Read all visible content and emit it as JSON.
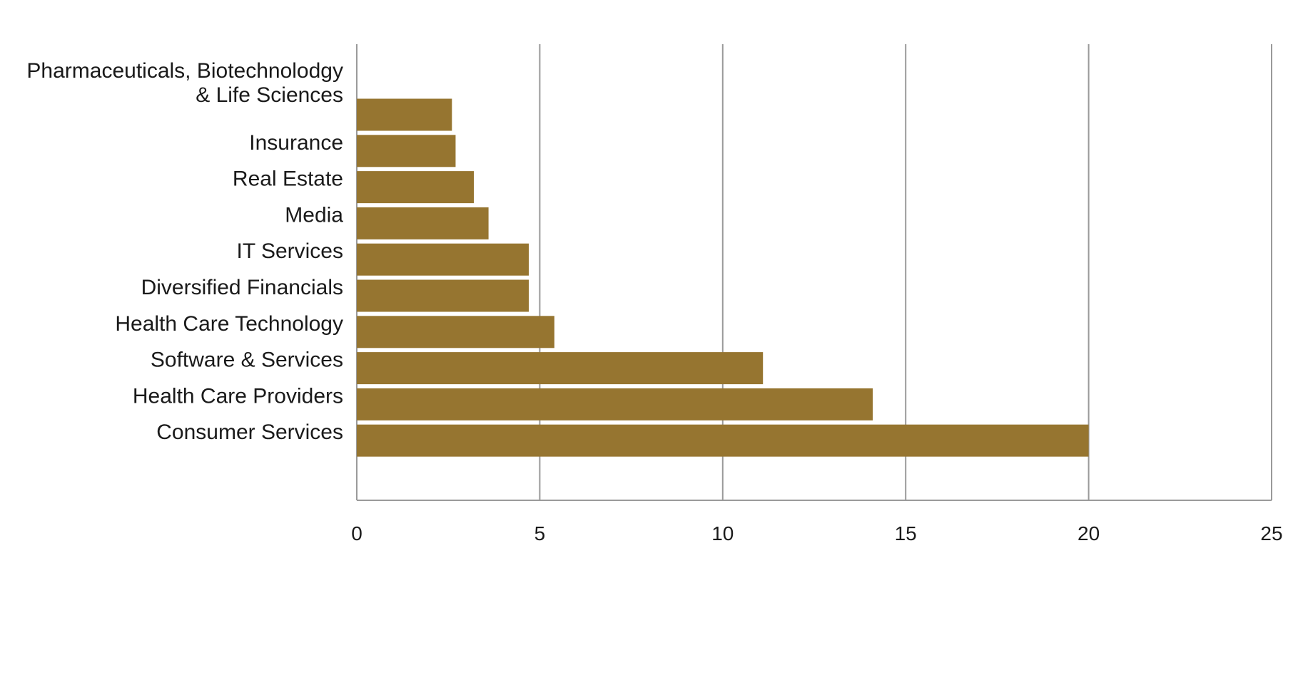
{
  "chart_data": {
    "type": "bar",
    "orientation": "horizontal",
    "categories": [
      "Pharmaceuticals, Biotechnolodgy\n& Life Sciences",
      "Insurance",
      "Real Estate",
      "Media",
      "IT Services",
      "Diversified Financials",
      "Health Care Technology",
      "Software & Services",
      "Health Care Providers",
      "Consumer Services"
    ],
    "values": [
      2.6,
      2.7,
      3.2,
      3.6,
      4.7,
      4.7,
      5.4,
      11.1,
      14.1,
      20.0
    ],
    "xlim": [
      0,
      25
    ],
    "xticks": [
      0,
      5,
      10,
      15,
      20,
      25
    ],
    "title": "",
    "xlabel": "",
    "ylabel": "",
    "grid": "vertical",
    "legend": "none",
    "bar_color": "#967530",
    "grid_color": "#9a9a9a"
  }
}
